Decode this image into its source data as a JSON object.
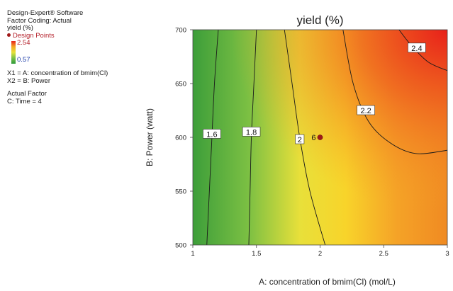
{
  "sidebar": {
    "software": "Design-Expert® Software",
    "factor_coding": "Factor Coding: Actual",
    "response": "yield (%)",
    "design_points_label": "Design Points",
    "scale_max": "2.54",
    "scale_min": "0.57",
    "x1_def": "X1 = A: concentration of bmim(Cl)",
    "x2_def": "X2 = B: Power",
    "actual_factor_heading": "Actual Factor",
    "actual_factor_value": "C: Time = 4"
  },
  "colors": {
    "low": "#3d9e3a",
    "mid": "#e8e03a",
    "high": "#e8201a",
    "design_point": "#a01818"
  },
  "chart_data": {
    "type": "contour",
    "title": "yield (%)",
    "xlabel": "A: concentration of bmim(Cl) (mol/L)",
    "ylabel": "B: Power (watt)",
    "xlim": [
      1,
      3
    ],
    "ylim": [
      500,
      700
    ],
    "xticks": [
      1,
      1.5,
      2,
      2.5,
      3
    ],
    "yticks": [
      500,
      550,
      600,
      650,
      700
    ],
    "contours": [
      {
        "level": "1.6",
        "points": [
          [
            1.2,
            700
          ],
          [
            1.17,
            650
          ],
          [
            1.15,
            600
          ],
          [
            1.13,
            550
          ],
          [
            1.11,
            500
          ]
        ]
      },
      {
        "level": "1.8",
        "points": [
          [
            1.5,
            700
          ],
          [
            1.48,
            650
          ],
          [
            1.46,
            600
          ],
          [
            1.45,
            550
          ],
          [
            1.44,
            500
          ]
        ]
      },
      {
        "level": "2",
        "points": [
          [
            1.72,
            700
          ],
          [
            1.78,
            650
          ],
          [
            1.84,
            600
          ],
          [
            1.92,
            550
          ],
          [
            2.04,
            500
          ]
        ]
      },
      {
        "level": "2.2",
        "points": [
          [
            2.18,
            700
          ],
          [
            2.26,
            650
          ],
          [
            2.38,
            615
          ],
          [
            2.55,
            595
          ],
          [
            2.75,
            585
          ],
          [
            3.0,
            588
          ]
        ]
      },
      {
        "level": "2.4",
        "points": [
          [
            2.62,
            700
          ],
          [
            2.72,
            685
          ],
          [
            2.85,
            670
          ],
          [
            3.0,
            662
          ]
        ]
      }
    ],
    "contour_labels": [
      {
        "text": "1.6",
        "x": 1.15,
        "y": 603
      },
      {
        "text": "1.8",
        "x": 1.46,
        "y": 605
      },
      {
        "text": "2",
        "x": 1.84,
        "y": 598
      },
      {
        "text": "2.2",
        "x": 2.36,
        "y": 625
      },
      {
        "text": "2.4",
        "x": 2.76,
        "y": 683
      }
    ],
    "design_points": [
      {
        "x": 2,
        "y": 600,
        "label": "6"
      }
    ]
  }
}
